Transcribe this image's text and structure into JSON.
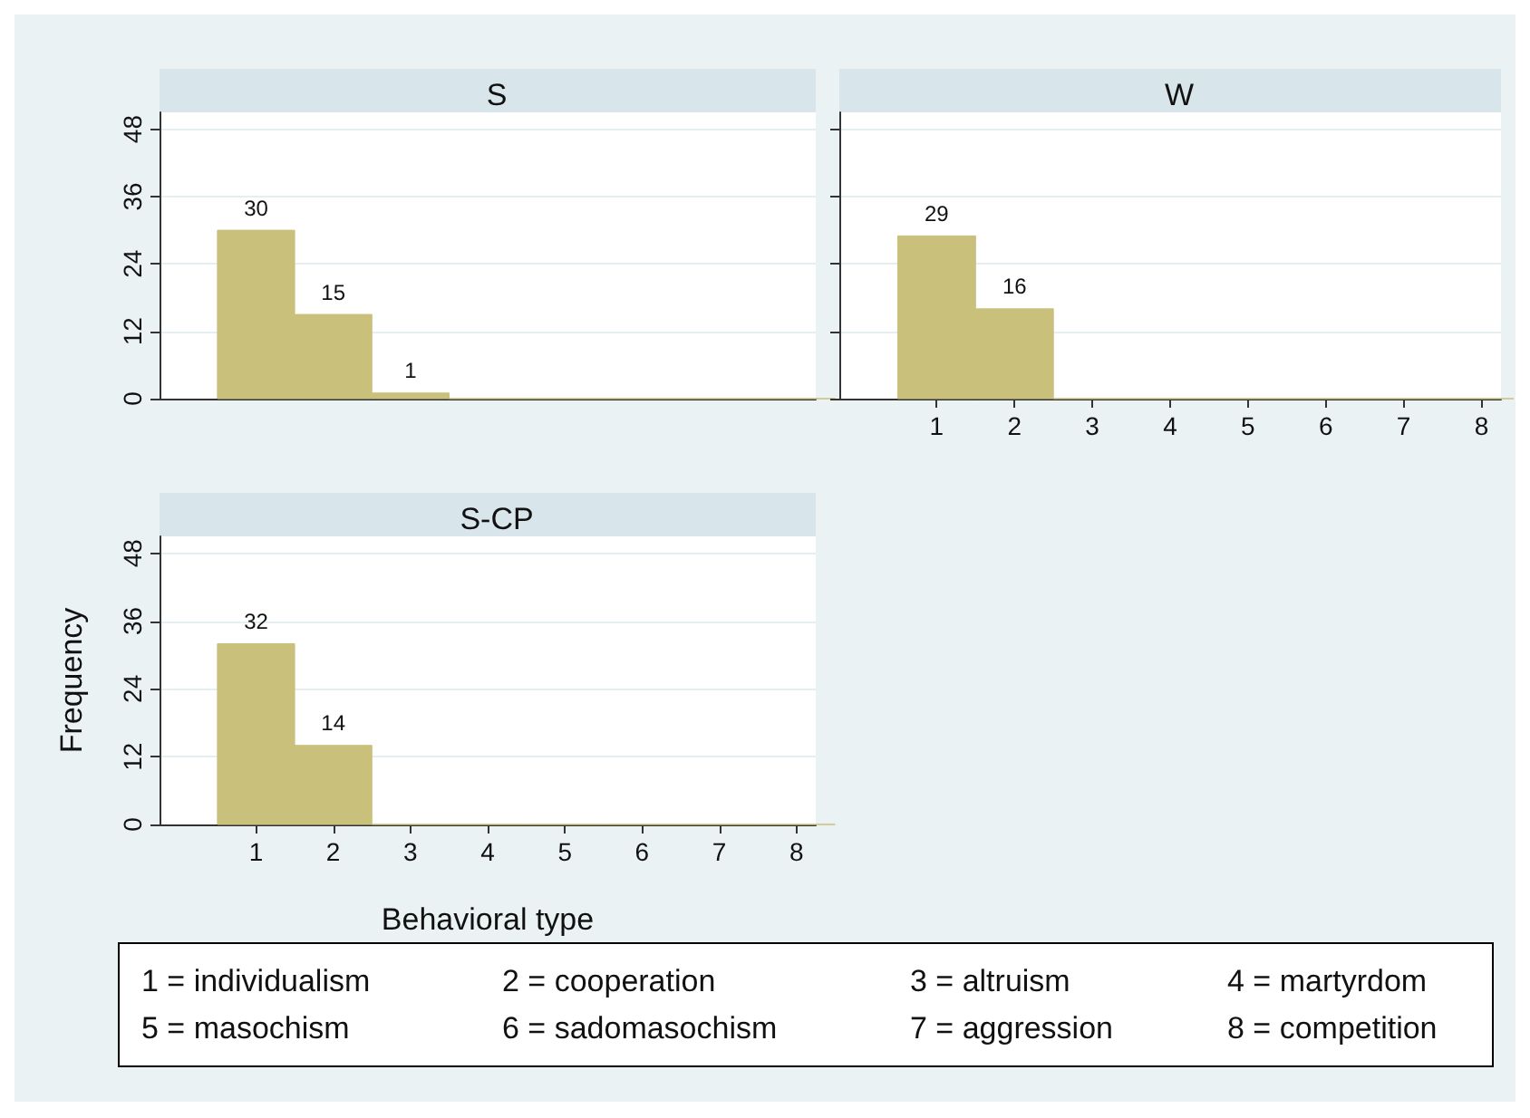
{
  "chart_data": [
    {
      "type": "histogram",
      "title": "S",
      "bins": [
        0.5,
        1.5,
        2.5,
        3.5,
        4.5,
        5.5,
        6.5,
        7.5,
        8.5
      ],
      "values": [
        30,
        15,
        1,
        0,
        0,
        0,
        0,
        0
      ],
      "value_labels": [
        "30",
        "15",
        "1",
        null,
        null,
        null,
        null,
        null
      ],
      "color": "#c9c07b",
      "xlim": [
        -0.25,
        8.25
      ],
      "xticks": [
        1,
        2,
        3,
        4,
        5,
        6,
        7,
        8
      ],
      "ylim": [
        0,
        51
      ],
      "yticks": [
        0,
        12,
        24,
        36,
        48
      ],
      "grid": "y",
      "tick_labels": "y"
    },
    {
      "type": "histogram",
      "title": "W",
      "bins": [
        0.5,
        1.5,
        2.5,
        3.5,
        4.5,
        5.5,
        6.5,
        7.5,
        8.5
      ],
      "values": [
        29,
        16,
        0,
        0,
        0,
        0,
        0,
        0
      ],
      "value_labels": [
        "29",
        "16",
        null,
        null,
        null,
        null,
        null,
        null
      ],
      "color": "#c9c07b",
      "xlim": [
        -0.25,
        8.25
      ],
      "xticks": [
        1,
        2,
        3,
        4,
        5,
        6,
        7,
        8
      ],
      "ylim": [
        0,
        51
      ],
      "yticks": [
        0,
        12,
        24,
        36,
        48
      ],
      "grid": "y",
      "tick_labels": "x"
    },
    {
      "type": "histogram",
      "title": "S-CP",
      "xlabel": "Behavioral type",
      "ylabel": "Frequency",
      "bins": [
        0.5,
        1.5,
        2.5,
        3.5,
        4.5,
        5.5,
        6.5,
        7.5,
        8.5
      ],
      "values": [
        32,
        14,
        0,
        0,
        0,
        0,
        0,
        0
      ],
      "value_labels": [
        "32",
        "14",
        null,
        null,
        null,
        null,
        null,
        null
      ],
      "color": "#c9c07b",
      "xlim": [
        -0.25,
        8.25
      ],
      "xticks": [
        1,
        2,
        3,
        4,
        5,
        6,
        7,
        8
      ],
      "ylim": [
        0,
        51
      ],
      "yticks": [
        0,
        12,
        24,
        36,
        48
      ],
      "grid": "y"
    },
    {
      "type": "other",
      "annotations": [
        "1 = individualism",
        "2 = cooperation",
        "3 = altruism",
        "4 = martyrdom",
        "5 = masochism",
        "6 = sadomasochism",
        "7 = aggression",
        "8 = competition"
      ]
    }
  ]
}
